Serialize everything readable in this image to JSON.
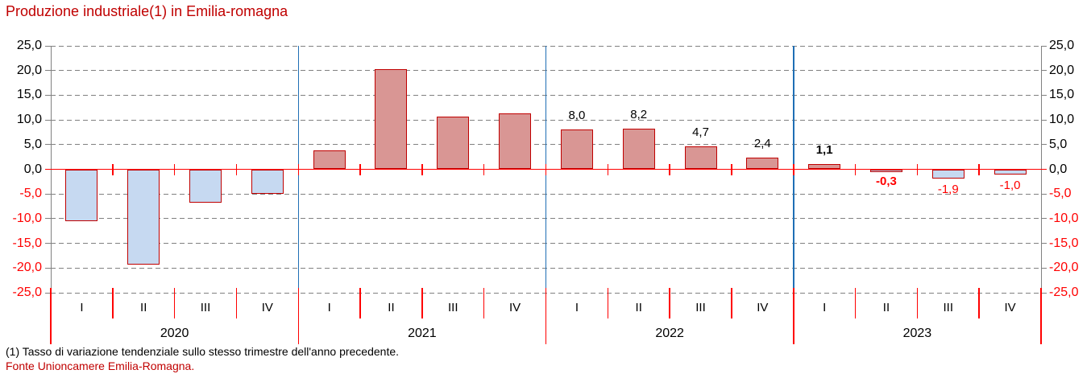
{
  "footnote": "(1) Tasso di variazione tendenziale sullo stesso trimestre dell'anno precedente.",
  "source": "Fonte Unioncamere Emilia-Romagna.",
  "chart_data": {
    "type": "bar",
    "title": "Produzione industriale(1) in Emilia-romagna",
    "ylim": [
      -25,
      25
    ],
    "ytick_step": 5,
    "ytick_labels": [
      "25,0",
      "20,0",
      "15,0",
      "10,0",
      "5,0",
      "0,0",
      "-5,0",
      "-10,0",
      "-15,0",
      "-20,0",
      "-25,0"
    ],
    "grid": "horizontal-dashed",
    "y_axis_sides": "both",
    "legend": "none",
    "years": [
      {
        "label": "2020",
        "quarters": [
          "I",
          "II",
          "III",
          "IV"
        ],
        "values": [
          -10.5,
          -19.3,
          -6.7,
          -5.0
        ]
      },
      {
        "label": "2021",
        "quarters": [
          "I",
          "II",
          "III",
          "IV"
        ],
        "values": [
          3.9,
          20.2,
          10.7,
          11.4
        ]
      },
      {
        "label": "2022",
        "quarters": [
          "I",
          "II",
          "III",
          "IV"
        ],
        "values": [
          8.0,
          8.2,
          4.7,
          2.4
        ]
      },
      {
        "label": "2023",
        "quarters": [
          "I",
          "II",
          "III",
          "IV"
        ],
        "values": [
          1.1,
          -0.3,
          -1.9,
          -1.0
        ]
      }
    ],
    "value_labels": [
      {
        "year": "2022",
        "quarter": "I",
        "text": "8,0",
        "color": "#000000",
        "bold": false,
        "position": "above"
      },
      {
        "year": "2022",
        "quarter": "II",
        "text": "8,2",
        "color": "#000000",
        "bold": false,
        "position": "above"
      },
      {
        "year": "2022",
        "quarter": "III",
        "text": "4,7",
        "color": "#000000",
        "bold": false,
        "position": "above"
      },
      {
        "year": "2022",
        "quarter": "IV",
        "text": "2,4",
        "color": "#000000",
        "bold": false,
        "position": "above"
      },
      {
        "year": "2023",
        "quarter": "I",
        "text": "1,1",
        "color": "#000000",
        "bold": true,
        "position": "above"
      },
      {
        "year": "2023",
        "quarter": "II",
        "text": "-0,3",
        "color": "#FF0000",
        "bold": true,
        "position": "below"
      },
      {
        "year": "2023",
        "quarter": "III",
        "text": "-1,9",
        "color": "#FF0000",
        "bold": false,
        "position": "below"
      },
      {
        "year": "2023",
        "quarter": "IV",
        "text": "-1,0",
        "color": "#FF0000",
        "bold": false,
        "position": "below"
      }
    ],
    "colors": {
      "title_color": "#C00000",
      "positive_fill": "#D99694",
      "negative_fill": "#C6D9F1",
      "bar_border": "#C00000",
      "zero_line": "#FF0000",
      "gridline": "#808080",
      "axis_line": "#808080",
      "year_separator": "#1F6FB5",
      "positive_tick_label": "#000000",
      "negative_tick_label": "#FF0000"
    }
  }
}
